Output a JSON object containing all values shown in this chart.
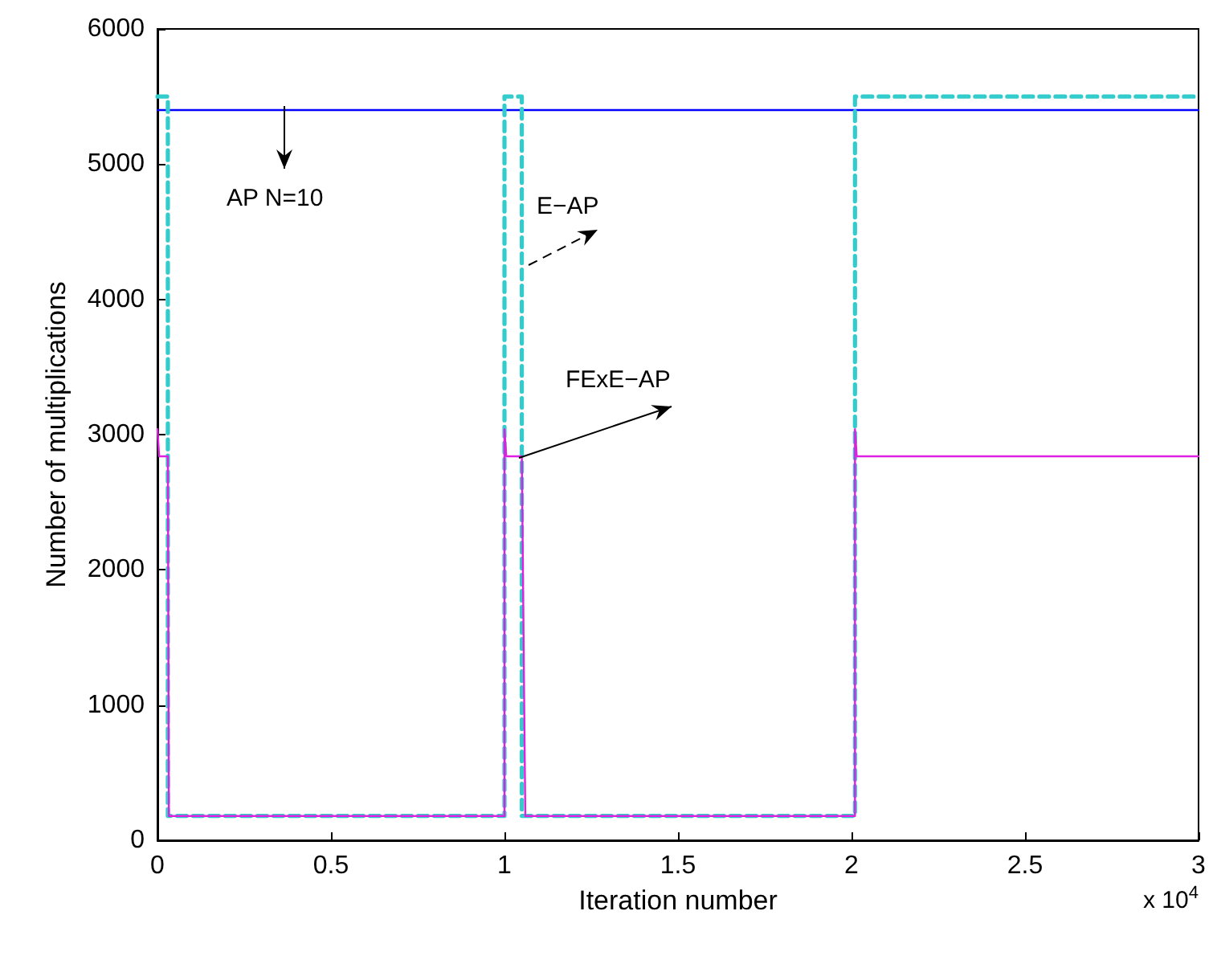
{
  "chart_data": {
    "type": "line",
    "xlabel": "Iteration number",
    "ylabel": "Number of multiplications",
    "xlim": [
      0,
      3
    ],
    "ylim": [
      0,
      6000
    ],
    "xticks": [
      0,
      0.5,
      1,
      1.5,
      2,
      2.5,
      3
    ],
    "yticks": [
      0,
      1000,
      2000,
      3000,
      4000,
      5000,
      6000
    ],
    "grid": false,
    "marker": "none",
    "series": [
      {
        "name": "AP N=10",
        "color": "#0000ff",
        "line_style": "solid",
        "x": [
          0,
          3
        ],
        "values": [
          5400,
          5400
        ]
      },
      {
        "name": "E−AP",
        "color": "#33cccc",
        "line_style": "dashed",
        "x": [
          0,
          0.03,
          0.03,
          1,
          1,
          1.05,
          1.05,
          2.01,
          2.01,
          3
        ],
        "values": [
          5500,
          5500,
          180,
          180,
          5500,
          5500,
          180,
          180,
          5500,
          5500
        ]
      },
      {
        "name": "FExE−AP",
        "color": "#e020e0",
        "line_style": "solid",
        "x": [
          0,
          0.005,
          0.03,
          0.033,
          1,
          1,
          1.005,
          1.05,
          1.06,
          2.01,
          2.01,
          2.015,
          3
        ],
        "values": [
          3040,
          2840,
          2840,
          180,
          180,
          3040,
          2840,
          2840,
          180,
          180,
          3040,
          2840,
          2840
        ]
      }
    ],
    "annotations": [
      "x 10$^{4}$"
    ]
  }
}
